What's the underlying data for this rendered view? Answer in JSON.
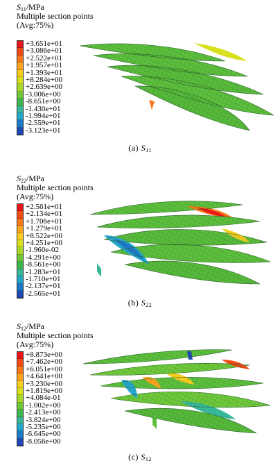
{
  "panels": [
    {
      "id": "a",
      "title_symbol": "S",
      "title_subscript": "11",
      "title_unit": "/MPa",
      "subtitle": "Multiple section points",
      "avg": "(Avg:75%)",
      "levels": [
        "+3.651e+01",
        "+3.086e+01",
        "+2.522e+01",
        "+1.957e+01",
        "+1.393e+01",
        "+8.284e+00",
        "+2.639e+00",
        "-3.006e+00",
        "-8.651e+00",
        "-1.430e+01",
        "-1.994e+01",
        "-2.559e+01",
        "-3.123e+01"
      ],
      "colors": [
        "#e8161b",
        "#f24a16",
        "#f7781a",
        "#fca31e",
        "#f9cd1f",
        "#d9e01e",
        "#a6d82a",
        "#6ec83a",
        "#3fb54f",
        "#37b69a",
        "#25a6cb",
        "#1c78c5",
        "#1f47b5"
      ],
      "caption_prefix": "(a)",
      "caption_symbol": "S",
      "caption_subscript": "11"
    },
    {
      "id": "b",
      "title_symbol": "S",
      "title_subscript": "22",
      "title_unit": "/MPa",
      "subtitle": "Multiple section points",
      "avg": "(Avg:75%)",
      "levels": [
        "+2.561e+01",
        "+2.134e+01",
        "+1.706e+01",
        "+1.279e+01",
        "+8.522e+00",
        "+4.251e+00",
        "-1.960e-02",
        "-4.291e+00",
        "-8.561e+00",
        "-1.283e+01",
        "-1.710e+01",
        "-2.137e+01",
        "-2.565e+01"
      ],
      "colors": [
        "#e8161b",
        "#f24a16",
        "#f7781a",
        "#fca31e",
        "#f9cd1f",
        "#d9e01e",
        "#a6d82a",
        "#6ec83a",
        "#3fb54f",
        "#37b69a",
        "#25a6cb",
        "#1c78c5",
        "#1f47b5"
      ],
      "caption_prefix": "(b)",
      "caption_symbol": "S",
      "caption_subscript": "22"
    },
    {
      "id": "c",
      "title_symbol": "S",
      "title_subscript": "12",
      "title_unit": "/MPa",
      "subtitle": "Multiple section points",
      "avg": "(Avg:75%)",
      "levels": [
        "+8.873e+00",
        "+7.462e+00",
        "+6.051e+00",
        "+4.641e+00",
        "+3.230e+00",
        "+1.819e+00",
        "+4.084e-01",
        "-1.002e+00",
        "-2.413e+00",
        "-3.824e+00",
        "-5.235e+00",
        "-6.645e+00",
        "-8.056e+00"
      ],
      "colors": [
        "#e8161b",
        "#f24a16",
        "#f7781a",
        "#fca31e",
        "#f9cd1f",
        "#d9e01e",
        "#a6d82a",
        "#6ec83a",
        "#3fb54f",
        "#37b69a",
        "#25a6cb",
        "#1c78c5",
        "#1f47b5"
      ],
      "caption_prefix": "(c)",
      "caption_symbol": "S",
      "caption_subscript": "12"
    }
  ]
}
